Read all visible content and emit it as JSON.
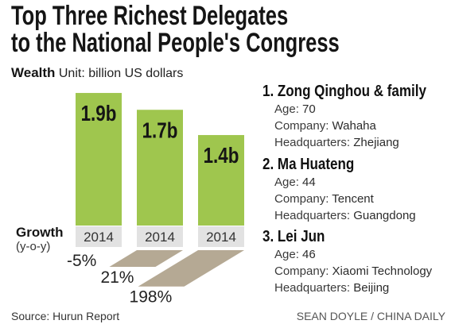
{
  "chart_data": {
    "type": "bar",
    "title": "Top Three Richest Delegates\nto the National People's Congress",
    "categories": [
      "2014",
      "2014",
      "2014"
    ],
    "series": [
      {
        "name": "Wealth",
        "unit_label": "Unit: billion US dollars",
        "values": [
          1.9,
          1.7,
          1.4
        ],
        "labels": [
          "1.9b",
          "1.7b",
          "1.4b"
        ]
      },
      {
        "name": "Growth",
        "note": "(y-o-y)",
        "values": [
          -5,
          21,
          198
        ],
        "labels": [
          "-5%",
          "21%",
          "198%"
        ]
      }
    ],
    "grid": false,
    "colors": {
      "wealth": "#9fc64e",
      "growth": "#b5a994",
      "year_box": "#e2e2e2"
    }
  },
  "delegates": [
    {
      "rank": "1.",
      "name": "Zong Qinghou & family",
      "details": [
        {
          "label": "Age:",
          "value": "70"
        },
        {
          "label": "Company:",
          "value": "Wahaha"
        },
        {
          "label": "Headquarters:",
          "value": "Zhejiang"
        }
      ]
    },
    {
      "rank": "2.",
      "name": "Ma Huateng",
      "details": [
        {
          "label": "Age:",
          "value": "44"
        },
        {
          "label": "Company:",
          "value": "Tencent"
        },
        {
          "label": "Headquarters:",
          "value": "Guangdong"
        }
      ]
    },
    {
      "rank": "3.",
      "name": "Lei Jun",
      "details": [
        {
          "label": "Age:",
          "value": "46"
        },
        {
          "label": "Company:",
          "value": "Xiaomi Technology"
        },
        {
          "label": "Headquarters:",
          "value": "Beijing"
        }
      ]
    }
  ],
  "footer": {
    "source": "Source: Hurun Report",
    "credit": "SEAN DOYLE / CHINA DAILY"
  }
}
